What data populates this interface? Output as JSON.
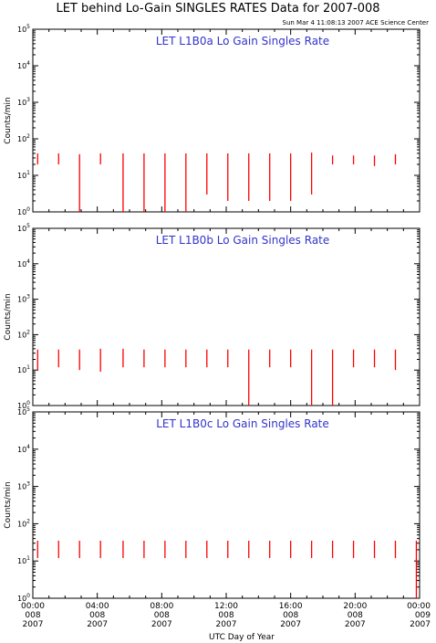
{
  "title": "LET behind Lo-Gain SINGLES RATES Data for 2007-008",
  "timestamp": "Sun Mar  4 11:08:13 2007 ACE Science Center",
  "xlabel": "UTC Day of Year",
  "ylabel": "Counts/min",
  "colors": {
    "data": "#ff0000",
    "panel_label": "#3333cc",
    "axis": "#000000"
  },
  "y_ticks": [
    {
      "base": "10",
      "exp": "0"
    },
    {
      "base": "10",
      "exp": "1"
    },
    {
      "base": "10",
      "exp": "2"
    },
    {
      "base": "10",
      "exp": "3"
    },
    {
      "base": "10",
      "exp": "4"
    },
    {
      "base": "10",
      "exp": "5"
    }
  ],
  "x_ticks": [
    {
      "time": "00:00",
      "day": "008",
      "year": "2007"
    },
    {
      "time": "04:00",
      "day": "008",
      "year": "2007"
    },
    {
      "time": "08:00",
      "day": "008",
      "year": "2007"
    },
    {
      "time": "12:00",
      "day": "008",
      "year": "2007"
    },
    {
      "time": "16:00",
      "day": "008",
      "year": "2007"
    },
    {
      "time": "20:00",
      "day": "008",
      "year": "2007"
    },
    {
      "time": "00:00",
      "day": "009",
      "year": "2007"
    }
  ],
  "chart_data": [
    {
      "type": "line",
      "title": "LET L1B0a Lo Gain Singles Rate",
      "yscale": "log",
      "ylim": [
        1,
        100000
      ],
      "xlim_hours": [
        0,
        24
      ],
      "series": [
        {
          "segments": [
            {
              "x": 0.3,
              "y_top": 40,
              "y_bottom": 20
            },
            {
              "x": 1.6,
              "y_top": 40,
              "y_bottom": 20
            },
            {
              "x": 2.9,
              "y_top": 38,
              "y_bottom": 1
            },
            {
              "x": 4.2,
              "y_top": 40,
              "y_bottom": 20
            },
            {
              "x": 5.6,
              "y_top": 40,
              "y_bottom": 1
            },
            {
              "x": 6.9,
              "y_top": 40,
              "y_bottom": 1
            },
            {
              "x": 8.2,
              "y_top": 40,
              "y_bottom": 1
            },
            {
              "x": 9.5,
              "y_top": 40,
              "y_bottom": 1
            },
            {
              "x": 10.8,
              "y_top": 40,
              "y_bottom": 3
            },
            {
              "x": 12.1,
              "y_top": 40,
              "y_bottom": 2
            },
            {
              "x": 13.4,
              "y_top": 40,
              "y_bottom": 2
            },
            {
              "x": 14.7,
              "y_top": 40,
              "y_bottom": 2
            },
            {
              "x": 16.0,
              "y_top": 40,
              "y_bottom": 2
            },
            {
              "x": 17.3,
              "y_top": 42,
              "y_bottom": 3
            },
            {
              "x": 18.6,
              "y_top": 35,
              "y_bottom": 20
            },
            {
              "x": 19.9,
              "y_top": 35,
              "y_bottom": 20
            },
            {
              "x": 21.2,
              "y_top": 35,
              "y_bottom": 18
            },
            {
              "x": 22.5,
              "y_top": 38,
              "y_bottom": 20
            }
          ]
        }
      ]
    },
    {
      "type": "line",
      "title": "LET L1B0b Lo Gain Singles Rate",
      "yscale": "log",
      "ylim": [
        1,
        100000
      ],
      "xlim_hours": [
        0,
        24
      ],
      "series": [
        {
          "segments": [
            {
              "x": 0.3,
              "y_top": 38,
              "y_bottom": 10
            },
            {
              "x": 1.6,
              "y_top": 38,
              "y_bottom": 12
            },
            {
              "x": 2.9,
              "y_top": 38,
              "y_bottom": 10
            },
            {
              "x": 4.2,
              "y_top": 40,
              "y_bottom": 9
            },
            {
              "x": 5.6,
              "y_top": 40,
              "y_bottom": 12
            },
            {
              "x": 6.9,
              "y_top": 38,
              "y_bottom": 12
            },
            {
              "x": 8.2,
              "y_top": 38,
              "y_bottom": 12
            },
            {
              "x": 9.5,
              "y_top": 38,
              "y_bottom": 12
            },
            {
              "x": 10.8,
              "y_top": 38,
              "y_bottom": 12
            },
            {
              "x": 12.1,
              "y_top": 38,
              "y_bottom": 12
            },
            {
              "x": 13.4,
              "y_top": 38,
              "y_bottom": 1
            },
            {
              "x": 14.7,
              "y_top": 38,
              "y_bottom": 12
            },
            {
              "x": 16.0,
              "y_top": 38,
              "y_bottom": 12
            },
            {
              "x": 17.3,
              "y_top": 38,
              "y_bottom": 1
            },
            {
              "x": 18.6,
              "y_top": 38,
              "y_bottom": 1
            },
            {
              "x": 19.9,
              "y_top": 38,
              "y_bottom": 12
            },
            {
              "x": 21.2,
              "y_top": 38,
              "y_bottom": 12
            },
            {
              "x": 22.5,
              "y_top": 38,
              "y_bottom": 10
            }
          ]
        }
      ]
    },
    {
      "type": "line",
      "title": "LET L1B0c Lo Gain Singles Rate",
      "yscale": "log",
      "ylim": [
        1,
        100000
      ],
      "xlim_hours": [
        0,
        24
      ],
      "series": [
        {
          "segments": [
            {
              "x": 0.3,
              "y_top": 35,
              "y_bottom": 12
            },
            {
              "x": 1.6,
              "y_top": 35,
              "y_bottom": 12
            },
            {
              "x": 2.9,
              "y_top": 35,
              "y_bottom": 12
            },
            {
              "x": 4.2,
              "y_top": 35,
              "y_bottom": 12
            },
            {
              "x": 5.6,
              "y_top": 35,
              "y_bottom": 12
            },
            {
              "x": 6.9,
              "y_top": 35,
              "y_bottom": 12
            },
            {
              "x": 8.2,
              "y_top": 35,
              "y_bottom": 12
            },
            {
              "x": 9.5,
              "y_top": 35,
              "y_bottom": 12
            },
            {
              "x": 10.8,
              "y_top": 35,
              "y_bottom": 12
            },
            {
              "x": 12.1,
              "y_top": 35,
              "y_bottom": 12
            },
            {
              "x": 13.4,
              "y_top": 35,
              "y_bottom": 12
            },
            {
              "x": 14.7,
              "y_top": 35,
              "y_bottom": 12
            },
            {
              "x": 16.0,
              "y_top": 35,
              "y_bottom": 12
            },
            {
              "x": 17.3,
              "y_top": 35,
              "y_bottom": 12
            },
            {
              "x": 18.6,
              "y_top": 35,
              "y_bottom": 12
            },
            {
              "x": 19.9,
              "y_top": 35,
              "y_bottom": 12
            },
            {
              "x": 21.2,
              "y_top": 35,
              "y_bottom": 12
            },
            {
              "x": 22.5,
              "y_top": 35,
              "y_bottom": 12
            },
            {
              "x": 23.8,
              "y_top": 35,
              "y_bottom": 1
            }
          ]
        }
      ]
    }
  ]
}
